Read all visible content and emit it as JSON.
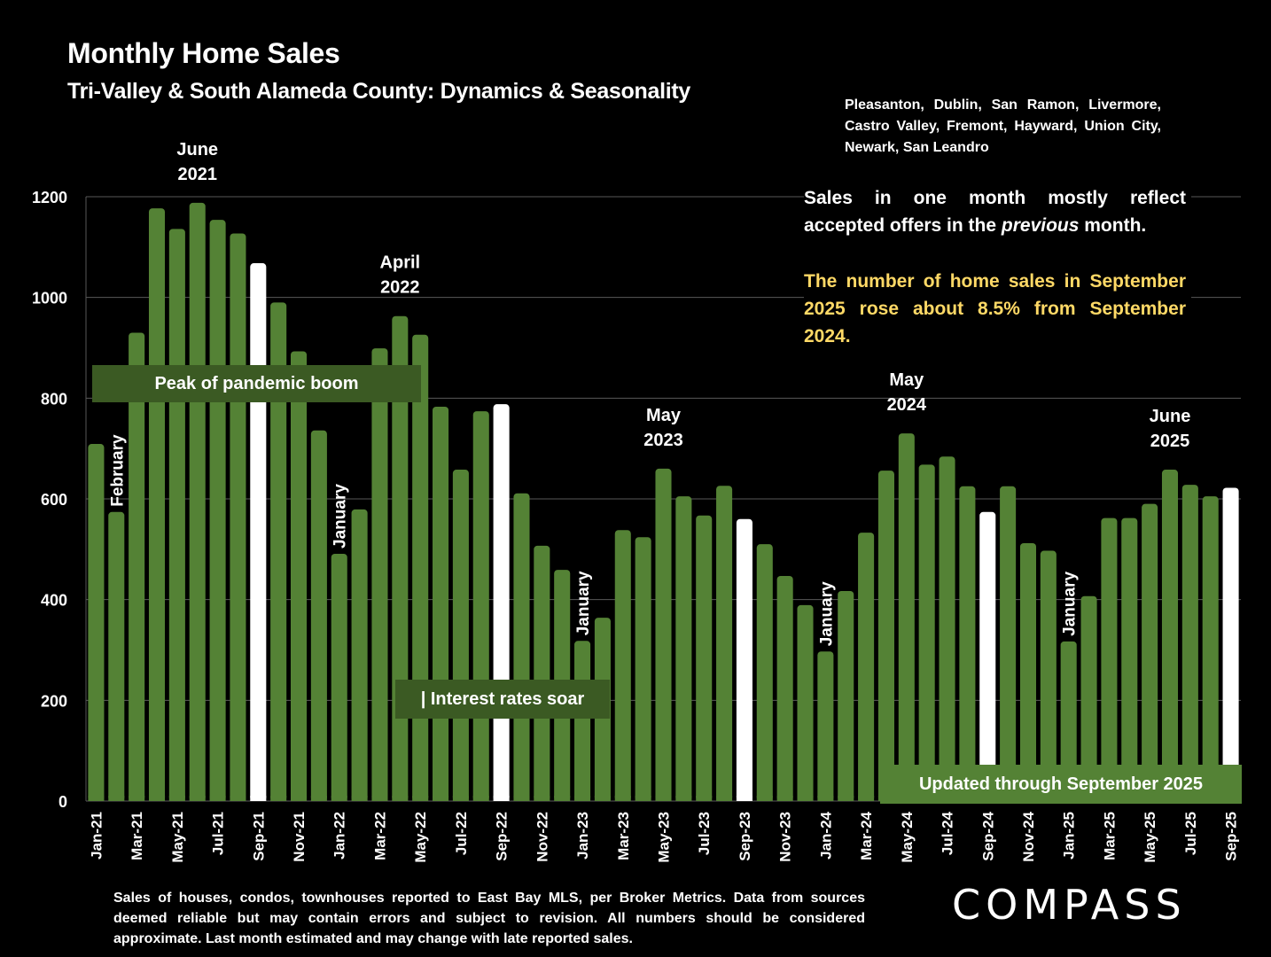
{
  "header": {
    "title": "Monthly Home Sales",
    "subtitle": "Tri-Valley & South Alameda County: Dynamics & Seasonality",
    "cities": "Pleasanton, Dublin, San Ramon, Livermore, Castro Valley, Fremont, Hayward, Union City, Newark, San Leandro"
  },
  "notes": {
    "sales_note_pre": "Sales in one month mostly reflect accepted offers in the ",
    "sales_note_italic": "previous",
    "sales_note_post": " month.",
    "highlight": "The number of home sales in September 2025 rose about 8.5% from September 2024."
  },
  "annotations_boxes": {
    "peak": "Peak of pandemic boom",
    "rates": "| Interest rates soar",
    "updated": "Updated through September 2025"
  },
  "footer": {
    "disclaimer": "Sales of houses, condos, townhouses reported to East Bay MLS, per Broker Metrics. Data from sources deemed reliable but may contain errors and subject to revision. All numbers should be considered approximate.  Last month estimated and may change with late reported sales.",
    "logo": "COMPASS"
  },
  "colors": {
    "bar": "#548235",
    "bar_highlight": "#FFFFFF",
    "gridline": "#595959",
    "annotation_box": "#3B5A23",
    "updated_box": "#548235",
    "highlight_text": "#FFD966",
    "background": "#000000"
  },
  "chart_data": {
    "type": "bar",
    "title": "Monthly Home Sales",
    "subtitle": "Tri-Valley & South Alameda County: Dynamics & Seasonality",
    "xlabel": "",
    "ylabel": "",
    "ylim": [
      0,
      1200
    ],
    "yticks": [
      0,
      200,
      400,
      600,
      800,
      1000,
      1200
    ],
    "grid": true,
    "legend": "none",
    "categories": [
      "Jan-21",
      "Feb-21",
      "Mar-21",
      "Apr-21",
      "May-21",
      "Jun-21",
      "Jul-21",
      "Aug-21",
      "Sep-21",
      "Oct-21",
      "Nov-21",
      "Dec-21",
      "Jan-22",
      "Feb-22",
      "Mar-22",
      "Apr-22",
      "May-22",
      "Jun-22",
      "Jul-22",
      "Aug-22",
      "Sep-22",
      "Oct-22",
      "Nov-22",
      "Dec-22",
      "Jan-23",
      "Feb-23",
      "Mar-23",
      "Apr-23",
      "May-23",
      "Jun-23",
      "Jul-23",
      "Aug-23",
      "Sep-23",
      "Oct-23",
      "Nov-23",
      "Dec-23",
      "Jan-24",
      "Feb-24",
      "Mar-24",
      "Apr-24",
      "May-24",
      "Jun-24",
      "Jul-24",
      "Aug-24",
      "Sep-24",
      "Oct-24",
      "Nov-24",
      "Dec-24",
      "Jan-25",
      "Feb-25",
      "Mar-25",
      "Apr-25",
      "May-25",
      "Jun-25",
      "Jul-25",
      "Aug-25",
      "Sep-25"
    ],
    "values": [
      709,
      574,
      930,
      1177,
      1136,
      1188,
      1154,
      1127,
      1068,
      990,
      893,
      736,
      491,
      579,
      899,
      963,
      926,
      783,
      658,
      774,
      788,
      611,
      507,
      459,
      318,
      364,
      538,
      524,
      660,
      605,
      567,
      626,
      560,
      510,
      447,
      389,
      297,
      417,
      533,
      656,
      730,
      668,
      684,
      625,
      574,
      625,
      512,
      497,
      317,
      407,
      562,
      562,
      590,
      658,
      628,
      605,
      622
    ],
    "highlighted_categories": [
      "Sep-21",
      "Sep-22",
      "Sep-23",
      "Sep-24",
      "Sep-25"
    ],
    "tick_labels_shown_every": 2,
    "annotations": [
      {
        "category": "Jun-21",
        "text": [
          "June",
          "2021"
        ],
        "orientation": "horizontal"
      },
      {
        "category": "Apr-22",
        "text": [
          "April",
          "2022"
        ],
        "orientation": "horizontal"
      },
      {
        "category": "May-23",
        "text": [
          "May",
          "2023"
        ],
        "orientation": "horizontal"
      },
      {
        "category": "May-24",
        "text": [
          "May",
          "2024"
        ],
        "orientation": "horizontal"
      },
      {
        "category": "Jun-25",
        "text": [
          "June",
          "2025"
        ],
        "orientation": "horizontal"
      },
      {
        "category": "Feb-21",
        "text": [
          "February"
        ],
        "orientation": "vertical"
      },
      {
        "category": "Jan-22",
        "text": [
          "January"
        ],
        "orientation": "vertical"
      },
      {
        "category": "Jan-23",
        "text": [
          "January"
        ],
        "orientation": "vertical"
      },
      {
        "category": "Jan-24",
        "text": [
          "January"
        ],
        "orientation": "vertical"
      },
      {
        "category": "Jan-25",
        "text": [
          "January"
        ],
        "orientation": "vertical"
      }
    ]
  }
}
